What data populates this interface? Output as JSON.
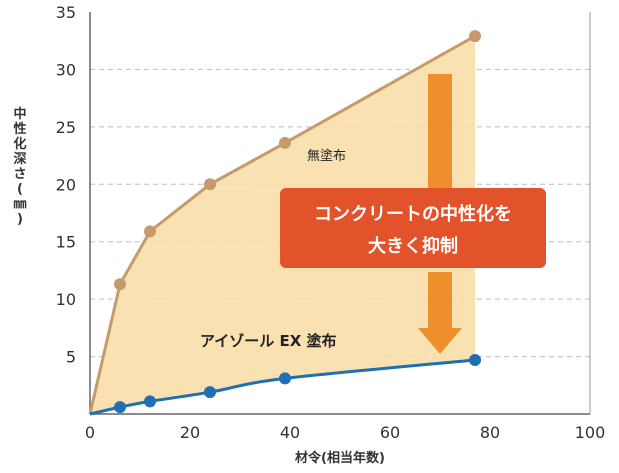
{
  "chart_data": {
    "type": "line",
    "xlabel": "材令(相当年数)",
    "ylabel": "中性化深さ(㎜)",
    "xlim": [
      0,
      100
    ],
    "ylim": [
      0,
      35
    ],
    "xticks": [
      0,
      20,
      40,
      60,
      80,
      100
    ],
    "yticks": [
      5,
      10,
      15,
      20,
      25,
      30,
      35
    ],
    "grid": "horizontal dashed",
    "series": [
      {
        "name": "無塗布",
        "x": [
          0,
          6,
          12,
          24,
          39,
          77
        ],
        "y": [
          0,
          11.3,
          15.9,
          20.0,
          23.6,
          32.9
        ]
      },
      {
        "name": "アイゾール EX 塗布",
        "x": [
          0,
          6,
          12,
          24,
          39,
          77
        ],
        "y": [
          0,
          0.6,
          1.1,
          1.9,
          3.1,
          4.7
        ]
      }
    ],
    "annotation": {
      "line1": "コンクリートの中性化を",
      "line2": "大きく抑制"
    }
  },
  "colors": {
    "uncoated": "#c59b6b",
    "coated": "#1f6fb5",
    "fill": "#f9dea8",
    "arrow": "#ef8f2b",
    "callout": "#e2522b",
    "grid": "#bdbdbd"
  }
}
